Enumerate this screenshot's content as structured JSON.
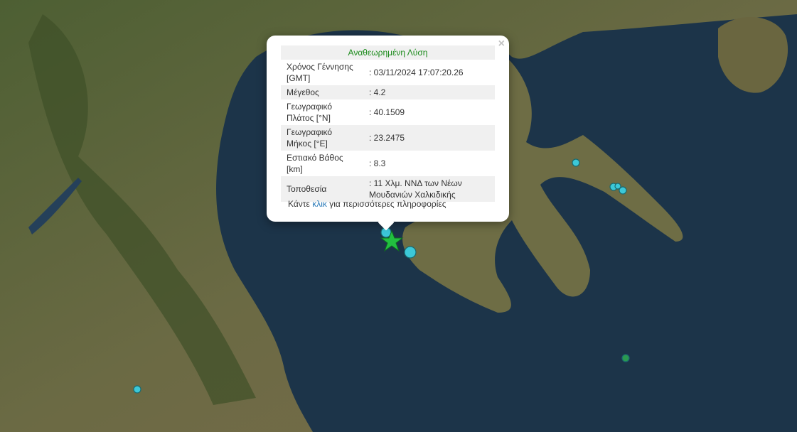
{
  "popup": {
    "title": "Αναθεωρημένη Λύση",
    "close_label": "×",
    "rows": [
      {
        "label": "Χρόνος Γέννησης [GMT]",
        "value": ": 03/11/2024 17:07:20.26"
      },
      {
        "label": "Μέγεθος",
        "value": ": 4.2"
      },
      {
        "label": "Γεωγραφικό Πλάτος [°N]",
        "value": ": 40.1509"
      },
      {
        "label": "Γεωγραφικό Μήκος [°E]",
        "value": ": 23.2475"
      },
      {
        "label": "Εστιακό Βάθος [km]",
        "value": ": 8.3"
      },
      {
        "label": "Τοποθεσία",
        "value": ": 11 Χλμ. ΝΝΔ των Νέων Μουδανιών Χαλκιδικής"
      }
    ],
    "more_prefix": "Κάντε ",
    "more_link": "κλικ",
    "more_suffix": " για περισσότερες πληροφορίες"
  },
  "colors": {
    "sea": "#1b3348",
    "land": "#5a6a3a",
    "marker": "#3cc8d8",
    "star": "#22c040",
    "title": "#1a8a1a"
  },
  "markers_icon": "circle-marker",
  "epicenter_icon": "star"
}
